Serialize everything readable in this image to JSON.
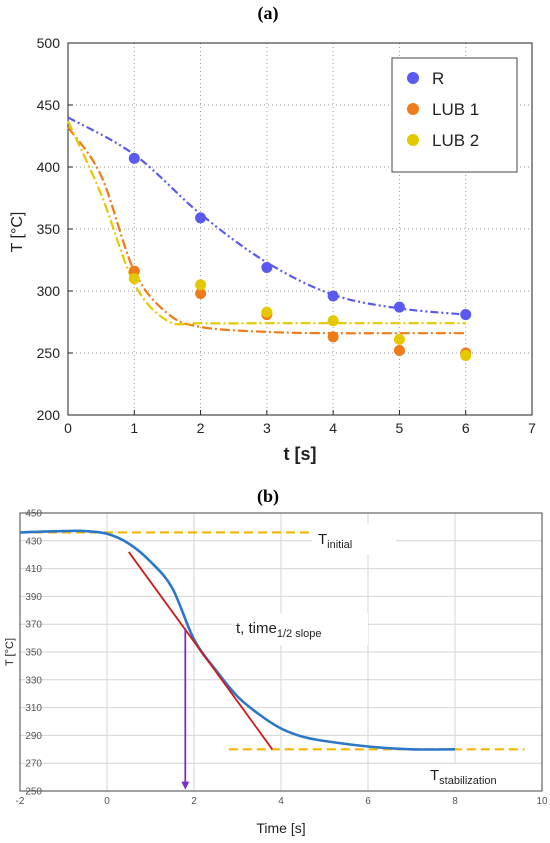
{
  "chart_data": [
    {
      "type": "scatter",
      "panel_label": "(a)",
      "xlabel": "t [s]",
      "ylabel": "T [°C]",
      "xlim": [
        0,
        7
      ],
      "ylim": [
        200,
        500
      ],
      "xticks": [
        0,
        1,
        2,
        3,
        4,
        5,
        6,
        7
      ],
      "yticks": [
        200,
        250,
        300,
        350,
        400,
        450,
        500
      ],
      "grid": "dotted",
      "legend_position": "top-right",
      "series": [
        {
          "name": "R",
          "color": "#5a5af0",
          "points": [
            [
              1,
              407
            ],
            [
              2,
              359
            ],
            [
              3,
              319
            ],
            [
              4,
              296
            ],
            [
              5,
              287
            ],
            [
              6,
              281
            ]
          ],
          "fit": [
            [
              0,
              440
            ],
            [
              1,
              410
            ],
            [
              2,
              362
            ],
            [
              3,
              323
            ],
            [
              4,
              297
            ],
            [
              5,
              286
            ],
            [
              6,
              281
            ]
          ]
        },
        {
          "name": "LUB 1",
          "color": "#f07b1a",
          "points": [
            [
              1,
              316
            ],
            [
              2,
              298
            ],
            [
              3,
              281
            ],
            [
              4,
              263
            ],
            [
              5,
              252
            ],
            [
              6,
              250
            ]
          ],
          "fit": [
            [
              0,
              432
            ],
            [
              0.5,
              393
            ],
            [
              1,
              316
            ],
            [
              1.5,
              282
            ],
            [
              2,
              271
            ],
            [
              3,
              267
            ],
            [
              4,
              266
            ],
            [
              5,
              266
            ],
            [
              6,
              266
            ]
          ]
        },
        {
          "name": "LUB 2",
          "color": "#e6c800",
          "points": [
            [
              1,
              310
            ],
            [
              2,
              305
            ],
            [
              3,
              283
            ],
            [
              4,
              276
            ],
            [
              5,
              261
            ],
            [
              6,
              248
            ]
          ],
          "fit": [
            [
              0,
              437
            ],
            [
              0.5,
              378
            ],
            [
              1,
              306
            ],
            [
              1.5,
              276
            ],
            [
              2,
              274
            ],
            [
              3,
              274
            ],
            [
              4,
              274
            ],
            [
              5,
              274
            ],
            [
              6,
              274
            ]
          ]
        }
      ]
    },
    {
      "type": "line",
      "panel_label": "(b)",
      "xlabel": "Time [s]",
      "ylabel": "T [°C]",
      "xlim": [
        -2,
        10
      ],
      "ylim": [
        250,
        450
      ],
      "xticks": [
        -2,
        0,
        2,
        4,
        6,
        8,
        10
      ],
      "yticks": [
        250,
        270,
        290,
        310,
        330,
        350,
        370,
        390,
        410,
        430,
        450
      ],
      "grid": "on",
      "series": [
        {
          "name": "",
          "color": "#2b78c8",
          "points": [
            [
              -2,
              436
            ],
            [
              -1,
              437
            ],
            [
              -0.5,
              437
            ],
            [
              0,
              435
            ],
            [
              0.5,
              428
            ],
            [
              1,
              415
            ],
            [
              1.5,
              396
            ],
            [
              2,
              359
            ],
            [
              2.5,
              337
            ],
            [
              3,
              318
            ],
            [
              3.5,
              305
            ],
            [
              4,
              295
            ],
            [
              4.5,
              289
            ],
            [
              5,
              286
            ],
            [
              6,
              282
            ],
            [
              7,
              280
            ],
            [
              8,
              280
            ]
          ]
        }
      ],
      "tangent": {
        "color": "#d01818",
        "points": [
          [
            0.5,
            422
          ],
          [
            3.8,
            280
          ]
        ]
      },
      "reference_lines": [
        {
          "y": 436,
          "x_range": [
            -2,
            4.7
          ],
          "color": "#f5b400"
        },
        {
          "y": 280,
          "x_range": [
            2.8,
            9.6
          ],
          "color": "#f5b400"
        }
      ],
      "half_time_marker": {
        "x": 1.8,
        "y_from": 367,
        "y_to": 251,
        "color": "#7b2fbf"
      },
      "annotations": {
        "t_initial": {
          "main": "T",
          "sub": "initial"
        },
        "t_half": {
          "main": "t, time",
          "sub": "1/2 slope"
        },
        "t_stab": {
          "main": "T",
          "sub": "stabilization"
        }
      }
    }
  ]
}
